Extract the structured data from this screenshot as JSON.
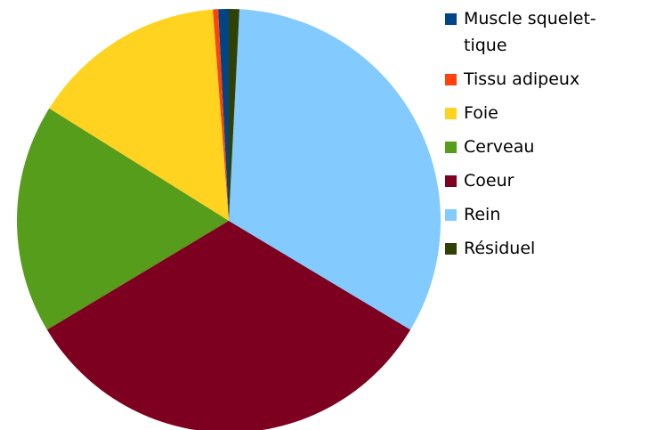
{
  "chart_data": {
    "type": "pie",
    "series": [
      {
        "name": "Muscle squelet-tique",
        "color": "#004586",
        "values": [
          0.8
        ]
      },
      {
        "name": "Tissu adipeux",
        "color": "#ff420e",
        "values": [
          0.4
        ]
      },
      {
        "name": "Foie",
        "color": "#ffd320",
        "values": [
          14.9
        ]
      },
      {
        "name": "Cerveau",
        "color": "#579d1c",
        "values": [
          17.5
        ]
      },
      {
        "name": "Coeur",
        "color": "#7e0021",
        "values": [
          32.8
        ]
      },
      {
        "name": "Rein",
        "color": "#83caff",
        "values": [
          32.8
        ]
      },
      {
        "name": "Résiduel",
        "color": "#314004",
        "values": [
          0.8
        ]
      }
    ]
  }
}
